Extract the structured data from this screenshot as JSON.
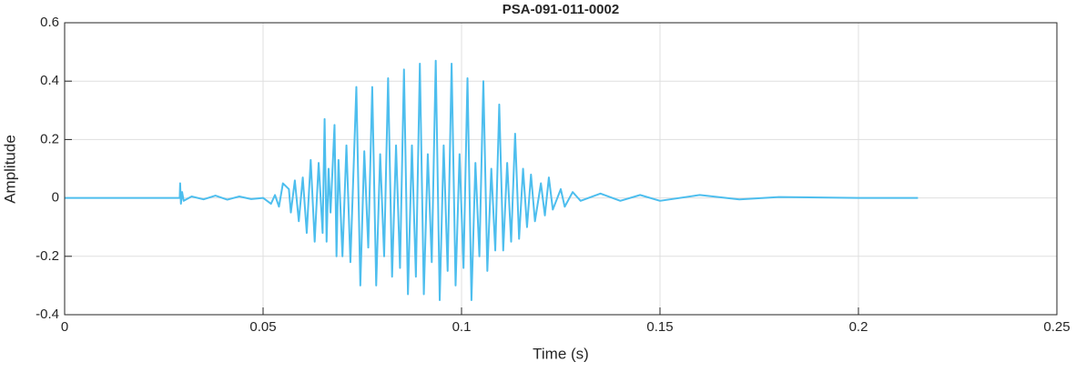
{
  "chart_data": {
    "type": "line",
    "title": "PSA-091-011-0002",
    "xlabel": "Time (s)",
    "ylabel": "Amplitude",
    "xlim": [
      0,
      0.25
    ],
    "ylim": [
      -0.4,
      0.6
    ],
    "xticks": [
      0,
      0.05,
      0.1,
      0.15,
      0.2,
      0.25
    ],
    "yticks": [
      -0.4,
      -0.2,
      0,
      0.2,
      0.4,
      0.6
    ],
    "grid": true,
    "series": [
      {
        "color": "#4dbeee",
        "x": [
          0,
          0.029,
          0.0291,
          0.0293,
          0.0296,
          0.03,
          0.032,
          0.035,
          0.038,
          0.041,
          0.044,
          0.047,
          0.05,
          0.052,
          0.053,
          0.054,
          0.055,
          0.0565,
          0.057,
          0.058,
          0.059,
          0.06,
          0.061,
          0.062,
          0.063,
          0.064,
          0.065,
          0.0655,
          0.066,
          0.0665,
          0.067,
          0.068,
          0.0685,
          0.069,
          0.07,
          0.071,
          0.072,
          0.0735,
          0.0745,
          0.0755,
          0.0765,
          0.0775,
          0.0785,
          0.0795,
          0.0805,
          0.0815,
          0.0825,
          0.0835,
          0.0845,
          0.0855,
          0.0865,
          0.0875,
          0.0885,
          0.0895,
          0.0905,
          0.0915,
          0.0925,
          0.0935,
          0.0945,
          0.0955,
          0.0965,
          0.0975,
          0.0985,
          0.0995,
          0.1005,
          0.1015,
          0.1025,
          0.1035,
          0.1045,
          0.1055,
          0.1065,
          0.1075,
          0.1085,
          0.1095,
          0.1105,
          0.1115,
          0.1125,
          0.1135,
          0.1145,
          0.1155,
          0.1165,
          0.1175,
          0.1185,
          0.12,
          0.121,
          0.122,
          0.123,
          0.125,
          0.126,
          0.128,
          0.13,
          0.135,
          0.14,
          0.145,
          0.15,
          0.16,
          0.17,
          0.18,
          0.2,
          0.215
        ],
        "values": [
          0,
          0,
          0.05,
          -0.02,
          0.02,
          -0.01,
          0.005,
          -0.005,
          0.008,
          -0.006,
          0.005,
          -0.004,
          0,
          -0.02,
          0.01,
          -0.03,
          0.05,
          0.03,
          -0.05,
          0.06,
          -0.08,
          0.07,
          -0.12,
          0.13,
          -0.15,
          0.12,
          -0.12,
          0.27,
          -0.15,
          0.1,
          -0.05,
          0.25,
          -0.2,
          0.13,
          -0.2,
          0.18,
          -0.22,
          0.38,
          -0.3,
          0.16,
          -0.17,
          0.38,
          -0.3,
          0.15,
          -0.2,
          0.41,
          -0.27,
          0.18,
          -0.24,
          0.44,
          -0.33,
          0.18,
          -0.27,
          0.46,
          -0.33,
          0.15,
          -0.22,
          0.47,
          -0.35,
          0.18,
          -0.25,
          0.46,
          -0.3,
          0.15,
          -0.24,
          0.41,
          -0.35,
          0.12,
          -0.2,
          0.4,
          -0.25,
          0.1,
          -0.18,
          0.32,
          -0.18,
          0.12,
          -0.15,
          0.22,
          -0.14,
          0.1,
          -0.1,
          0.08,
          -0.08,
          0.05,
          -0.06,
          0.07,
          -0.04,
          0.03,
          -0.03,
          0.02,
          -0.01,
          0.015,
          -0.01,
          0.01,
          -0.01,
          0.01,
          -0.005,
          0.003,
          0,
          0
        ]
      }
    ]
  }
}
